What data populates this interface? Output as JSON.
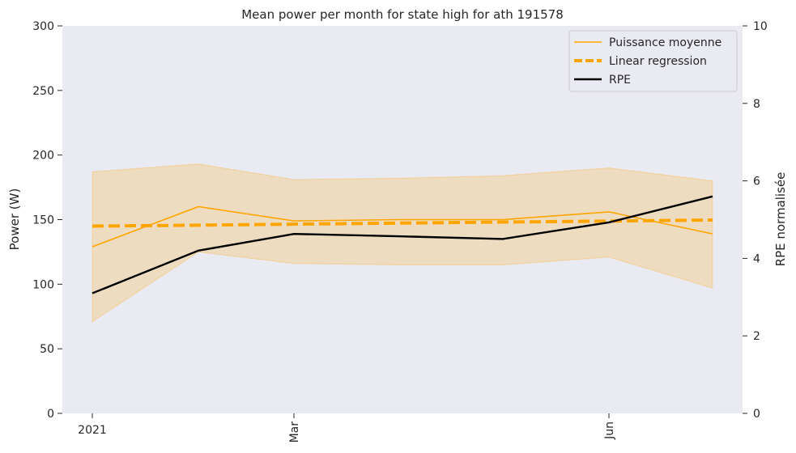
{
  "chart_data": {
    "type": "line",
    "title": "Mean power per month for state high for ath 191578",
    "x_labels": [
      "2021",
      "Mar",
      "Jun"
    ],
    "x_index": [
      0,
      1,
      2,
      3,
      4,
      5,
      6
    ],
    "x_tick_positions": [
      0,
      2,
      5
    ],
    "y_left": {
      "label": "Power (W)",
      "range": [
        0,
        300
      ],
      "ticks": [
        "0",
        "50",
        "100",
        "150",
        "200",
        "250",
        "300"
      ]
    },
    "y_right": {
      "label": "RPE normalisée",
      "range": [
        0,
        10
      ],
      "ticks": [
        "0",
        "2",
        "4",
        "6",
        "8",
        "10"
      ]
    },
    "legend": {
      "placement": "top-right",
      "entries": [
        "Puissance moyenne",
        "Linear regression",
        "RPE"
      ]
    },
    "series": [
      {
        "name": "Puissance moyenne",
        "axis": "left",
        "color": "#FFA500",
        "values": [
          129,
          160,
          149,
          150,
          150,
          156,
          139
        ]
      },
      {
        "name": "Linear regression",
        "axis": "left",
        "color": "#FFA500",
        "style": "dashed",
        "values": [
          145,
          145.7,
          146.5,
          147.3,
          148.1,
          148.9,
          149.7
        ]
      },
      {
        "name": "RPE",
        "axis": "right",
        "color": "#000000",
        "values": [
          3.1,
          4.2,
          4.63,
          4.57,
          4.5,
          4.93,
          5.6
        ]
      }
    ],
    "band": {
      "name": "power range",
      "color": "#FFA500",
      "upper": [
        187,
        193,
        181,
        182,
        184,
        190,
        180
      ],
      "lower": [
        71,
        125,
        116,
        115,
        115,
        121,
        97
      ]
    },
    "grid": false
  }
}
